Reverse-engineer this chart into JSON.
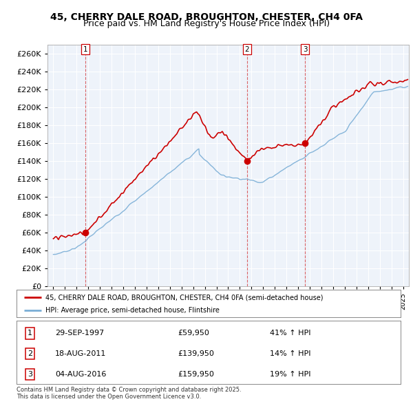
{
  "title": "45, CHERRY DALE ROAD, BROUGHTON, CHESTER, CH4 0FA",
  "subtitle": "Price paid vs. HM Land Registry's House Price Index (HPI)",
  "red_label": "45, CHERRY DALE ROAD, BROUGHTON, CHESTER, CH4 0FA (semi-detached house)",
  "blue_label": "HPI: Average price, semi-detached house, Flintshire",
  "transactions": [
    {
      "num": 1,
      "date": "29-SEP-1997",
      "price": "£59,950",
      "hpi": "41% ↑ HPI",
      "year": 1997.75
    },
    {
      "num": 2,
      "date": "18-AUG-2011",
      "price": "£139,950",
      "hpi": "14% ↑ HPI",
      "year": 2011.62
    },
    {
      "num": 3,
      "date": "04-AUG-2016",
      "price": "£159,950",
      "hpi": "19% ↑ HPI",
      "year": 2016.59
    }
  ],
  "transaction_values": [
    59950,
    139950,
    159950
  ],
  "ylim": [
    0,
    270000
  ],
  "yticks": [
    0,
    20000,
    40000,
    60000,
    80000,
    100000,
    120000,
    140000,
    160000,
    180000,
    200000,
    220000,
    240000,
    260000
  ],
  "xlim_start": 1994.5,
  "xlim_end": 2025.5,
  "footer": "Contains HM Land Registry data © Crown copyright and database right 2025.\nThis data is licensed under the Open Government Licence v3.0.",
  "red_color": "#cc0000",
  "blue_color": "#7aaed6",
  "dashed_color": "#cc0000",
  "background_color": "#eef3fa",
  "grid_color": "#ffffff",
  "title_fontsize": 10,
  "subtitle_fontsize": 9
}
